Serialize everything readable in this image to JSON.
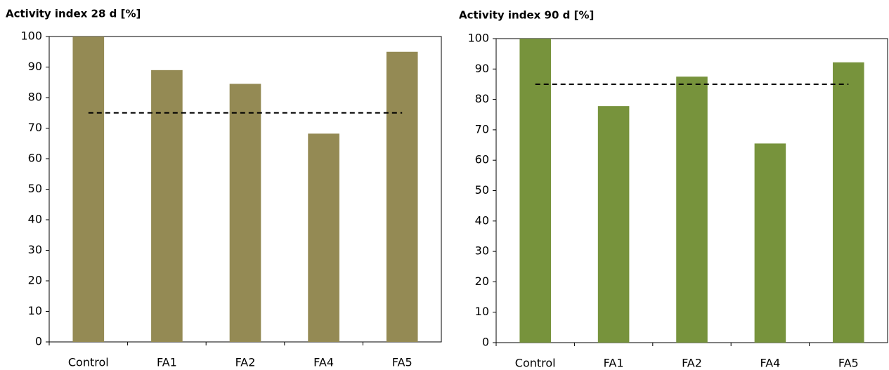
{
  "chart_data": [
    {
      "type": "bar",
      "title": "Activity index 28 d [%]",
      "categories": [
        "Control",
        "FA1",
        "FA2",
        "FA4",
        "FA5"
      ],
      "values": [
        100,
        89,
        84.5,
        68.2,
        95
      ],
      "color": "#948a54",
      "reference_line": 75,
      "ylim": [
        0,
        100
      ],
      "yticks": [
        0,
        10,
        20,
        30,
        40,
        50,
        60,
        70,
        80,
        90,
        100
      ],
      "grid": false
    },
    {
      "type": "bar",
      "title": "Activity index 90 d [%]",
      "categories": [
        "Control",
        "FA1",
        "FA2",
        "FA4",
        "FA5"
      ],
      "values": [
        100,
        77.8,
        87.5,
        65.5,
        92.2
      ],
      "color": "#77933c",
      "reference_line": 85,
      "ylim": [
        0,
        100
      ],
      "yticks": [
        0,
        10,
        20,
        30,
        40,
        50,
        60,
        70,
        80,
        90,
        100
      ],
      "grid": false
    }
  ]
}
